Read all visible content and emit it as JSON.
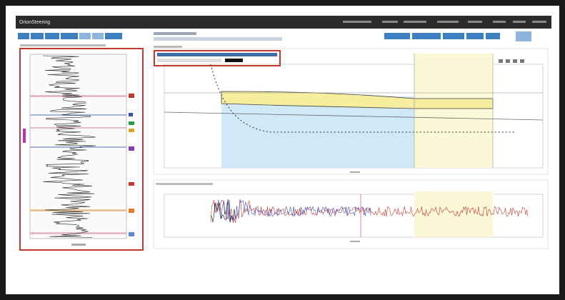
{
  "header": {
    "title": "OrionSteering"
  }
}
